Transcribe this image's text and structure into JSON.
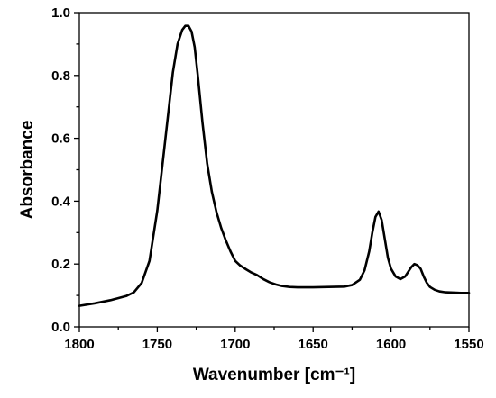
{
  "chart_data": {
    "type": "line",
    "title": "",
    "xlabel": "Wavenumber [cm⁻¹]",
    "ylabel": "Absorbance",
    "xlim": [
      1800,
      1550
    ],
    "ylim": [
      0.0,
      1.0
    ],
    "x_reversed": true,
    "grid": false,
    "legend": "none",
    "line_color": "#000000",
    "x_ticks": [
      {
        "value": 1800,
        "label": "1800"
      },
      {
        "value": 1750,
        "label": "1750"
      },
      {
        "value": 1700,
        "label": "1700"
      },
      {
        "value": 1650,
        "label": "1650"
      },
      {
        "value": 1600,
        "label": "1600"
      },
      {
        "value": 1550,
        "label": "1550"
      }
    ],
    "y_ticks": [
      {
        "value": 0.0,
        "label": "0.0"
      },
      {
        "value": 0.2,
        "label": "0.2"
      },
      {
        "value": 0.4,
        "label": "0.4"
      },
      {
        "value": 0.6,
        "label": "0.6"
      },
      {
        "value": 0.8,
        "label": "0.8"
      },
      {
        "value": 1.0,
        "label": "1.0"
      }
    ],
    "series": [
      {
        "x": [
          1800,
          1790,
          1780,
          1770,
          1765,
          1760,
          1755,
          1750,
          1745,
          1740,
          1737,
          1734,
          1732,
          1730,
          1728,
          1726,
          1724,
          1721,
          1718,
          1715,
          1712,
          1709,
          1706,
          1703,
          1700,
          1697,
          1693,
          1690,
          1686,
          1682,
          1678,
          1674,
          1670,
          1665,
          1660,
          1650,
          1640,
          1630,
          1625,
          1620,
          1617,
          1614,
          1612,
          1610,
          1608,
          1606,
          1604,
          1602,
          1600,
          1597,
          1594,
          1591,
          1589,
          1587,
          1585,
          1583,
          1581,
          1579,
          1577,
          1575,
          1572,
          1569,
          1565,
          1560,
          1555,
          1550
        ],
        "y": [
          0.067,
          0.075,
          0.085,
          0.098,
          0.11,
          0.14,
          0.21,
          0.37,
          0.59,
          0.81,
          0.9,
          0.945,
          0.958,
          0.958,
          0.94,
          0.89,
          0.8,
          0.65,
          0.52,
          0.43,
          0.365,
          0.315,
          0.275,
          0.24,
          0.21,
          0.196,
          0.183,
          0.174,
          0.165,
          0.152,
          0.142,
          0.135,
          0.13,
          0.127,
          0.126,
          0.126,
          0.127,
          0.128,
          0.133,
          0.15,
          0.18,
          0.24,
          0.3,
          0.35,
          0.367,
          0.34,
          0.28,
          0.22,
          0.185,
          0.16,
          0.152,
          0.16,
          0.175,
          0.19,
          0.2,
          0.196,
          0.185,
          0.16,
          0.14,
          0.127,
          0.118,
          0.113,
          0.11,
          0.109,
          0.108,
          0.108
        ]
      }
    ]
  }
}
